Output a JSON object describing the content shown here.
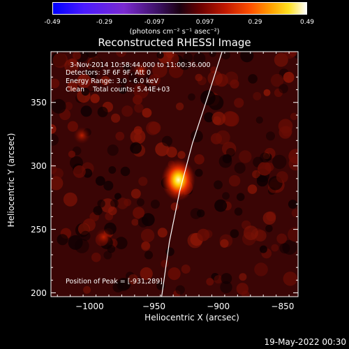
{
  "colorbar": {
    "tick_labels": [
      "-0.49",
      "-0.29",
      "-0.097",
      "0.097",
      "0.29",
      "0.49"
    ],
    "tick_values": [
      -0.49,
      -0.29,
      -0.097,
      0.097,
      0.29,
      0.49
    ],
    "units": "(photons cm⁻² s⁻¹ asec⁻²)"
  },
  "chart_data": {
    "type": "heatmap",
    "title": "Reconstructed RHESSI Image",
    "xlabel": "Heliocentric X (arcsec)",
    "ylabel": "Heliocentric Y (arcsec)",
    "xlim": [
      -1030,
      -838
    ],
    "ylim": [
      197,
      390
    ],
    "x_ticks": [
      -1000,
      -950,
      -900,
      -850
    ],
    "y_ticks": [
      200,
      250,
      300,
      350
    ],
    "x_tick_labels": [
      "−1000",
      "−950",
      "−900",
      "−850"
    ],
    "y_tick_labels": [
      "200",
      "250",
      "300",
      "350"
    ],
    "peak": {
      "x": -931,
      "y": 289,
      "value": 0.49
    },
    "secondary_sources": [
      {
        "x": -1006,
        "y": 324,
        "value": 0.12
      },
      {
        "x": -989,
        "y": 244,
        "value": 0.1
      },
      {
        "x": -960,
        "y": 375,
        "value": 0.09
      }
    ],
    "value_range": [
      -0.49,
      0.49
    ],
    "limb_curve": [
      {
        "x": -944,
        "y": 197
      },
      {
        "x": -938,
        "y": 240
      },
      {
        "x": -930,
        "y": 280
      },
      {
        "x": -920,
        "y": 318
      },
      {
        "x": -908,
        "y": 355
      },
      {
        "x": -897,
        "y": 390
      }
    ]
  },
  "annotations": {
    "time_range": "3-Nov-2014 10:58:44.000 to 11:00:36.000",
    "detectors": "Detectors: 3F 6F 9F, Att 0",
    "energy_range": "Energy Range: 3.0 - 6.0 keV",
    "clean_counts": "Clean    Total counts: 5.44E+03",
    "peak_position": "Position of Peak = [-931,289]"
  },
  "footer": {
    "date": "19-May-2022 00:30"
  }
}
